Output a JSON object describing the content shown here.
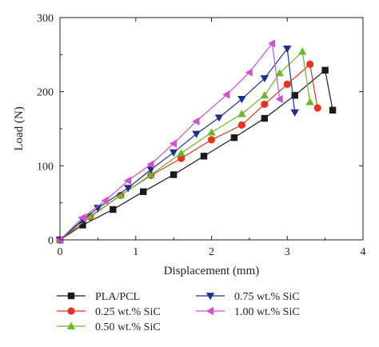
{
  "chart_data": {
    "type": "line",
    "title": "",
    "xlabel": "Displacement (mm)",
    "ylabel": "Load (N)",
    "xlim": [
      0,
      4
    ],
    "ylim": [
      0,
      300
    ],
    "x_ticks": [
      "0",
      "1",
      "2",
      "3",
      "4"
    ],
    "y_ticks": [
      "0",
      "100",
      "200",
      "300"
    ],
    "grid": false,
    "legend_position": "bottom",
    "series": [
      {
        "name": "PLA/PCL",
        "color": "#1a1a1a",
        "marker": "square",
        "points": [
          [
            0,
            0
          ],
          [
            0.3,
            20
          ],
          [
            0.7,
            41
          ],
          [
            1.1,
            65
          ],
          [
            1.5,
            88
          ],
          [
            1.9,
            113
          ],
          [
            2.3,
            138
          ],
          [
            2.7,
            164
          ],
          [
            3.1,
            195
          ],
          [
            3.5,
            229
          ],
          [
            3.6,
            175
          ]
        ]
      },
      {
        "name": "0.25 wt.% SiC",
        "color": "#e8321c",
        "marker": "circle",
        "points": [
          [
            0,
            0
          ],
          [
            0.4,
            31
          ],
          [
            0.8,
            60
          ],
          [
            1.2,
            87
          ],
          [
            1.6,
            110
          ],
          [
            2.0,
            135
          ],
          [
            2.4,
            155
          ],
          [
            2.7,
            183
          ],
          [
            3.0,
            210
          ],
          [
            3.3,
            237
          ],
          [
            3.4,
            178
          ]
        ]
      },
      {
        "name": "0.50 wt.% SiC",
        "color": "#6ab82a",
        "marker": "triangle-up",
        "points": [
          [
            0,
            0
          ],
          [
            0.4,
            32
          ],
          [
            0.8,
            60
          ],
          [
            1.2,
            88
          ],
          [
            1.6,
            117
          ],
          [
            2.0,
            145
          ],
          [
            2.4,
            170
          ],
          [
            2.7,
            195
          ],
          [
            2.9,
            225
          ],
          [
            3.2,
            254
          ],
          [
            3.3,
            186
          ]
        ]
      },
      {
        "name": "0.75 wt.% SiC",
        "color": "#1f2f8c",
        "marker": "triangle-down",
        "points": [
          [
            0,
            0
          ],
          [
            0.3,
            27
          ],
          [
            0.5,
            43
          ],
          [
            0.9,
            70
          ],
          [
            1.2,
            95
          ],
          [
            1.5,
            118
          ],
          [
            1.8,
            143
          ],
          [
            2.1,
            165
          ],
          [
            2.4,
            190
          ],
          [
            2.7,
            218
          ],
          [
            3.0,
            258
          ],
          [
            3.1,
            172
          ]
        ]
      },
      {
        "name": "1.00 wt.% SiC",
        "color": "#d24fd0",
        "marker": "triangle-left",
        "points": [
          [
            0,
            0
          ],
          [
            0.3,
            30
          ],
          [
            0.6,
            53
          ],
          [
            0.9,
            80
          ],
          [
            1.2,
            102
          ],
          [
            1.5,
            130
          ],
          [
            1.8,
            160
          ],
          [
            2.2,
            196
          ],
          [
            2.5,
            226
          ],
          [
            2.8,
            265
          ],
          [
            2.9,
            190
          ]
        ]
      }
    ]
  }
}
